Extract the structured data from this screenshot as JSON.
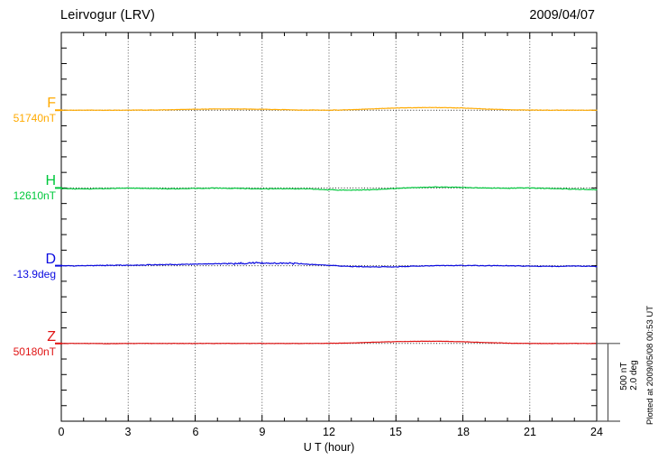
{
  "chart_data": {
    "type": "line",
    "title": "Leirvogur (LRV)",
    "date": "2009/04/07",
    "xlabel": "U T (hour)",
    "xlim": [
      0,
      24
    ],
    "x_ticks": [
      0,
      3,
      6,
      9,
      12,
      15,
      18,
      21,
      24
    ],
    "x_minor_step_hours": 1,
    "grid": "vertical dotted every 3 hours, dotted horizontal baseline per trace",
    "legend_position": "left margin, one colored label per trace",
    "scale_bar": {
      "nT_per_division": 500,
      "deg_per_division": 2.0,
      "line1": "500 nT",
      "line2": "2.0 deg"
    },
    "annotations": {
      "plotted_at": "Plotted at 2009/05/08 00:53 UT"
    },
    "hours": [
      0,
      1,
      2,
      3,
      4,
      5,
      6,
      7,
      8,
      9,
      10,
      11,
      12,
      13,
      14,
      15,
      16,
      17,
      18,
      19,
      20,
      21,
      22,
      23,
      24
    ],
    "series": [
      {
        "id": "F",
        "label": "F",
        "baseline_label": "51740nT",
        "baseline_value": 51740,
        "unit": "nT",
        "color": "#FFAA00",
        "deviation_nT": [
          0,
          0,
          0,
          0,
          1,
          3,
          6,
          8,
          8,
          6,
          3,
          1,
          0,
          3,
          9,
          14,
          17,
          17,
          14,
          8,
          3,
          1,
          0,
          0,
          0
        ]
      },
      {
        "id": "H",
        "label": "H",
        "baseline_label": "12610nT",
        "baseline_value": 12610,
        "unit": "nT",
        "color": "#00C83C",
        "deviation_nT": [
          -3,
          -6,
          -4,
          -1,
          -3,
          -6,
          -3,
          -1,
          -3,
          -6,
          -4,
          -6,
          -12,
          -14,
          -11,
          -3,
          3,
          6,
          3,
          0,
          -2,
          0,
          -3,
          -8,
          -11
        ]
      },
      {
        "id": "D",
        "label": "D",
        "baseline_label": "-13.9deg",
        "baseline_value": -13.9,
        "unit": "deg",
        "color": "#0A0AE0",
        "deviation_deg": [
          0,
          0,
          0.01,
          0.01,
          0.02,
          0.03,
          0.04,
          0.05,
          0.065,
          0.07,
          0.06,
          0.04,
          0.01,
          -0.02,
          -0.03,
          -0.03,
          -0.01,
          0,
          0.005,
          0,
          0,
          -0.01,
          -0.02,
          -0.01,
          -0.02
        ]
      },
      {
        "id": "Z",
        "label": "Z",
        "baseline_label": "50180nT",
        "baseline_value": 50180,
        "unit": "nT",
        "color": "#E01414",
        "deviation_nT": [
          0,
          0,
          -1,
          0,
          0,
          0,
          0,
          0,
          0,
          0,
          0,
          0,
          1,
          3,
          8,
          12,
          14,
          14,
          11,
          6,
          2,
          0,
          0,
          0,
          0
        ]
      }
    ],
    "axis_color": "#000000",
    "grid_color": "#555555"
  }
}
